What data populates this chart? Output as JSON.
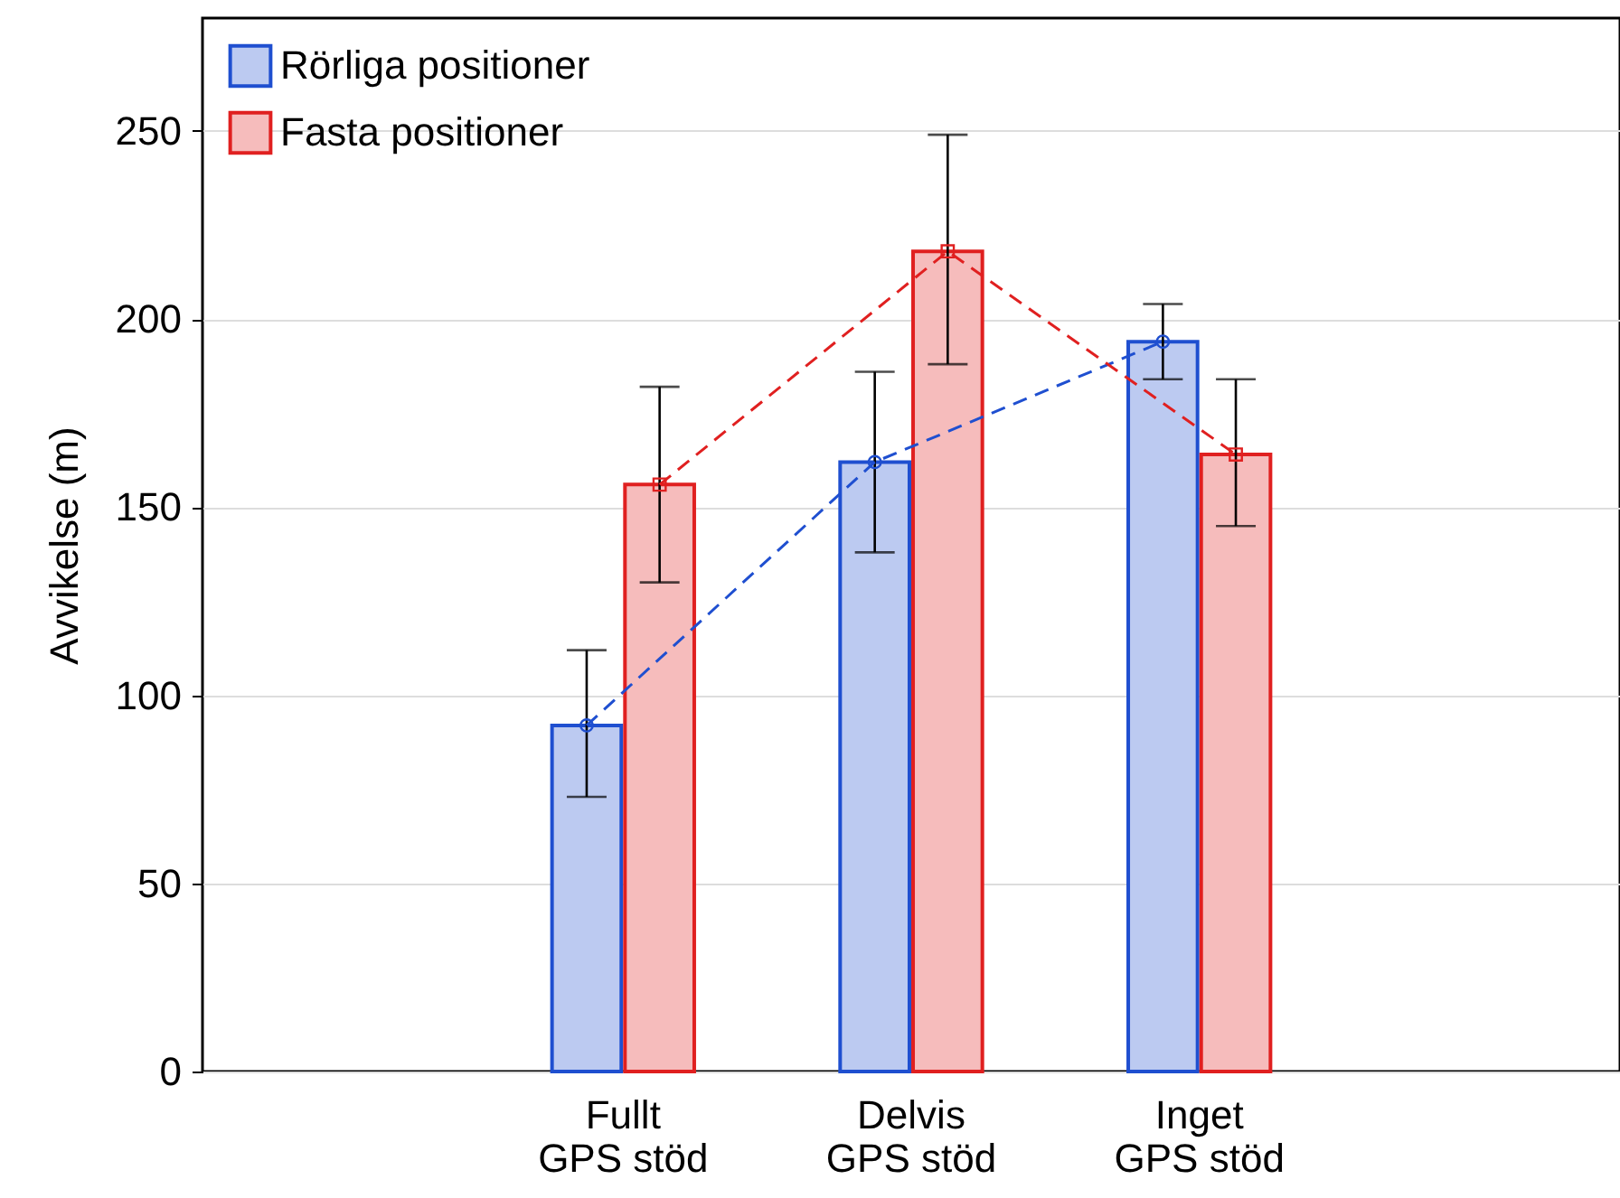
{
  "chart_data": {
    "type": "bar",
    "ylabel": "Avvikelse (m)",
    "categories": [
      "Fullt\nGPS stöd",
      "Delvis\nGPS stöd",
      "Inget\nGPS stöd"
    ],
    "series": [
      {
        "name": "Rörliga positioner",
        "color": "#1f4fd0",
        "values": [
          92,
          162,
          194
        ],
        "errors": [
          [
            73,
            112
          ],
          [
            138,
            186
          ],
          [
            184,
            204
          ]
        ]
      },
      {
        "name": "Fasta positioner",
        "color": "#e02020",
        "values": [
          156,
          218,
          164
        ],
        "errors": [
          [
            130,
            182
          ],
          [
            188,
            249
          ],
          [
            145,
            184
          ]
        ]
      },
      {
        "type": "line",
        "color": "#1f4fd0",
        "values": [
          92,
          162,
          194
        ],
        "marker": "circle",
        "line_style": "dashed"
      },
      {
        "type": "line",
        "color": "#e02020",
        "values": [
          156,
          218,
          164
        ],
        "marker": "square",
        "line_style": "dashed"
      }
    ],
    "ylim": [
      0,
      280
    ],
    "yticks": [
      0,
      50,
      100,
      150,
      200,
      250
    ],
    "grid": "y",
    "legend": "top left"
  }
}
